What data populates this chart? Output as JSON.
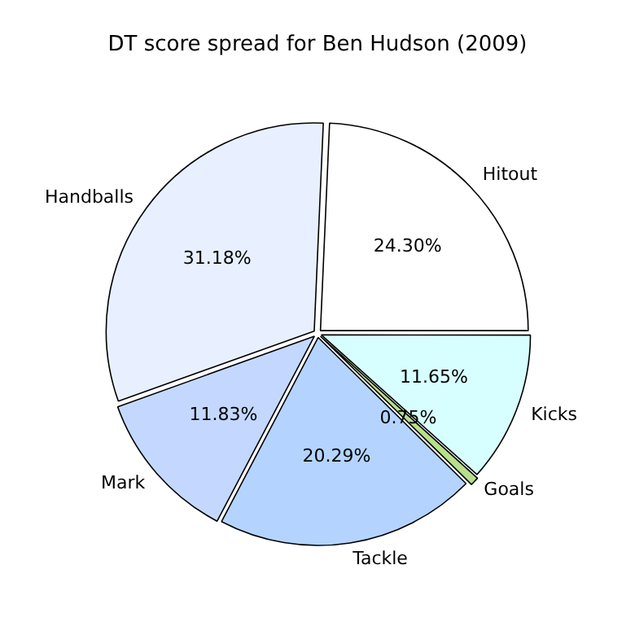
{
  "chart_data": {
    "type": "pie",
    "title": "DT score spread for Ben Hudson (2009)",
    "categories": [
      "Kicks",
      "Goals",
      "Tackle",
      "Mark",
      "Handballs",
      "Hitout"
    ],
    "values": [
      11.65,
      0.75,
      20.29,
      11.83,
      31.18,
      24.3
    ],
    "value_labels": [
      "11.65%",
      "0.75%",
      "20.29%",
      "11.83%",
      "31.18%",
      "24.30%"
    ],
    "colors": [
      "#d8ffff",
      "#b8e08a",
      "#b4d4ff",
      "#c4d8ff",
      "#e8f0ff",
      "#ffffff"
    ],
    "legend": false
  }
}
